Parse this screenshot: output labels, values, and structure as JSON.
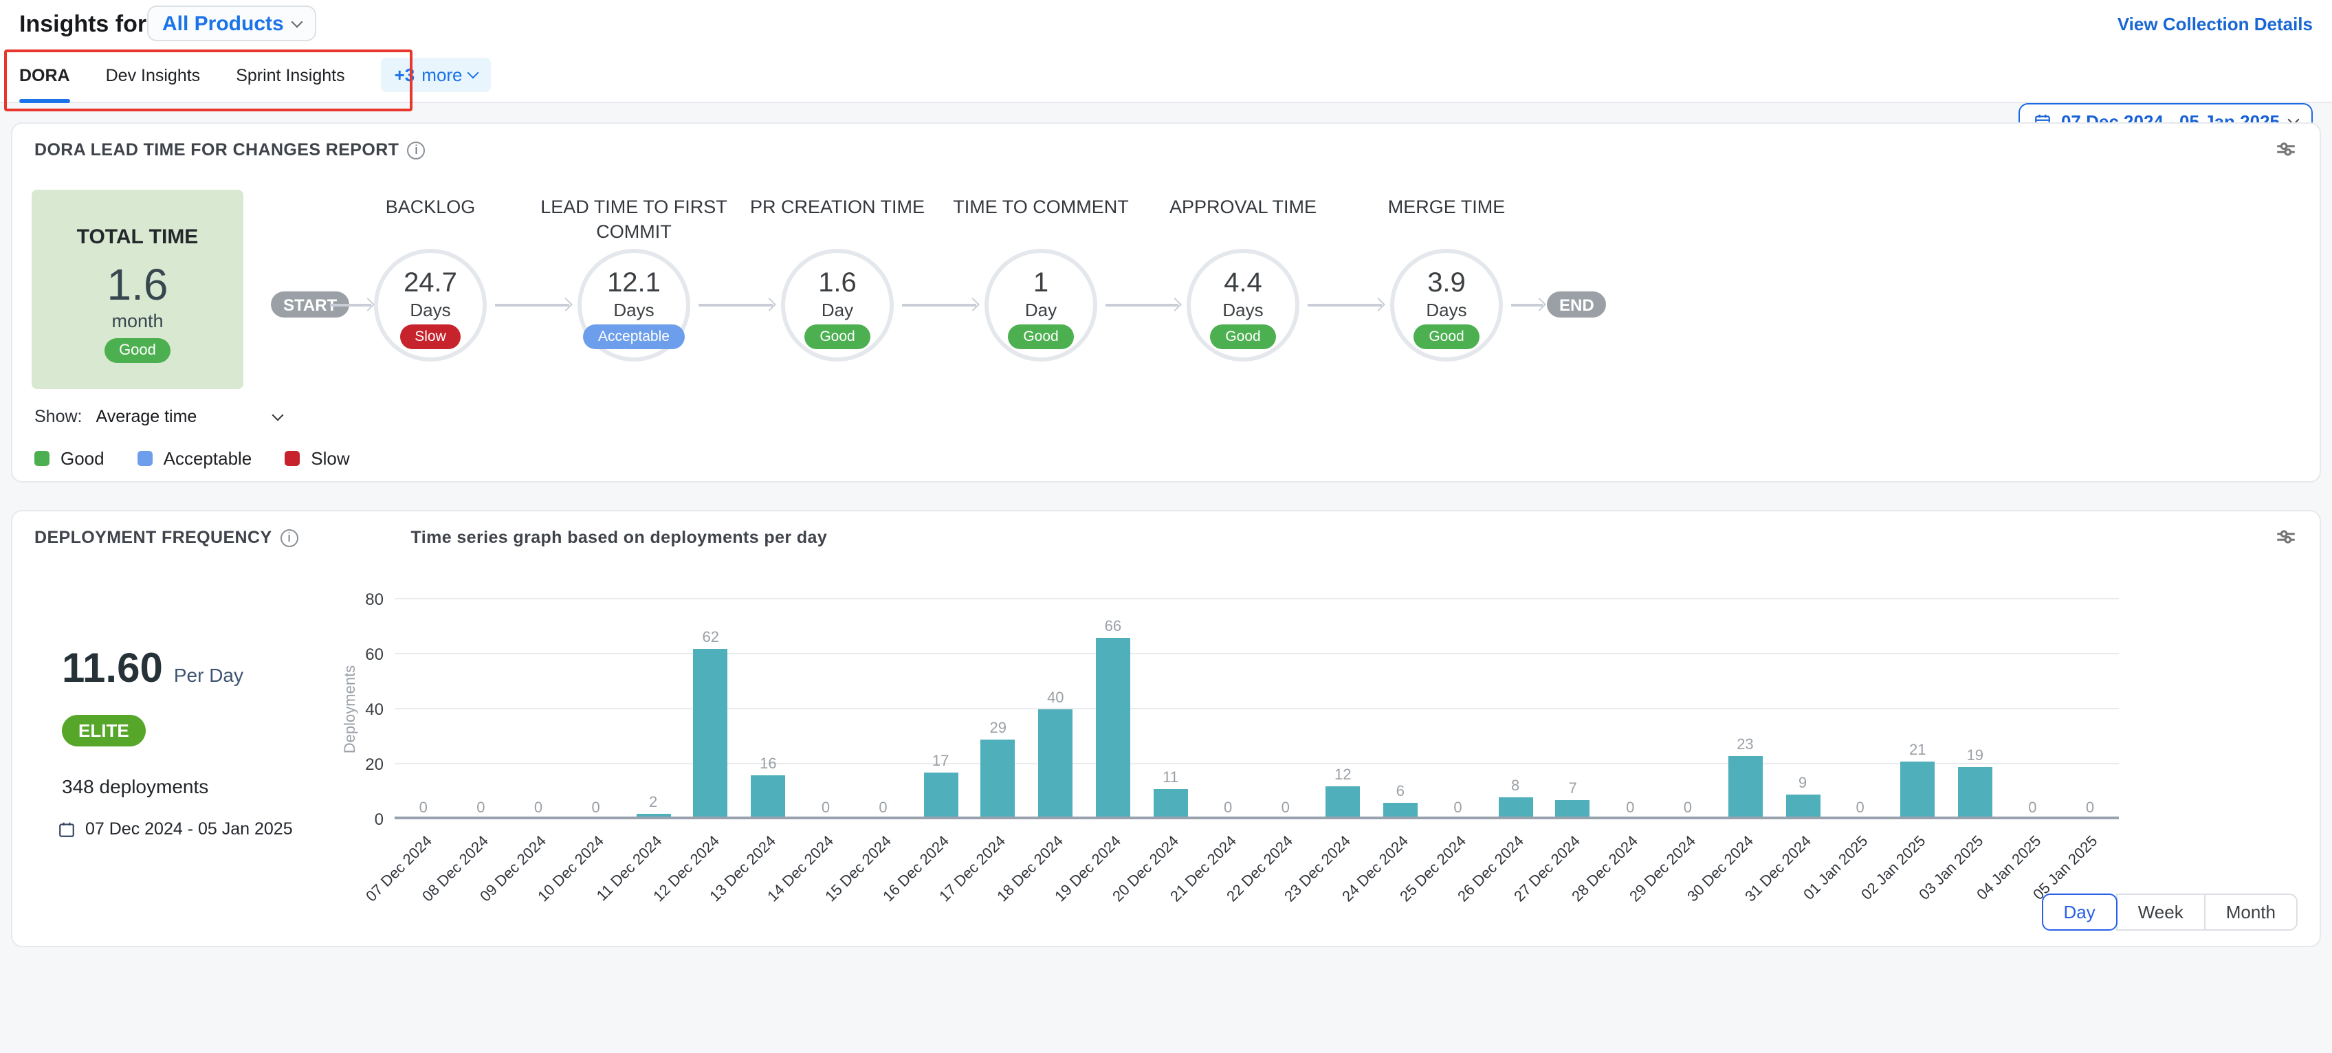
{
  "colors": {
    "good": "#4caf50",
    "acceptable": "#6d9eeb",
    "slow": "#c6232c",
    "bar": "#4fafba",
    "blue": "#1a73e8",
    "elite": "#55a629",
    "annotation_red": "#e8362d"
  },
  "header": {
    "title": "Insights for",
    "product_label": "All Products",
    "view_collection_details": "View Collection Details"
  },
  "tabs": {
    "items": [
      {
        "label": "DORA",
        "active": true
      },
      {
        "label": "Dev Insights",
        "active": false
      },
      {
        "label": "Sprint Insights",
        "active": false
      }
    ],
    "more_count": "+3",
    "more_word": "more",
    "date_range": "07 Dec 2024 - 05 Jan 2025"
  },
  "lead_time_card": {
    "title": "DORA LEAD TIME FOR CHANGES REPORT",
    "total": {
      "label": "TOTAL TIME",
      "value": "1.6",
      "unit": "month",
      "status": "Good"
    },
    "start_label": "START",
    "end_label": "END",
    "stages": [
      {
        "name": "BACKLOG",
        "value": "24.7",
        "unit": "Days",
        "status": "Slow"
      },
      {
        "name": "LEAD TIME TO FIRST COMMIT",
        "value": "12.1",
        "unit": "Days",
        "status": "Acceptable"
      },
      {
        "name": "PR CREATION TIME",
        "value": "1.6",
        "unit": "Day",
        "status": "Good"
      },
      {
        "name": "TIME TO COMMENT",
        "value": "1",
        "unit": "Day",
        "status": "Good"
      },
      {
        "name": "APPROVAL TIME",
        "value": "4.4",
        "unit": "Days",
        "status": "Good"
      },
      {
        "name": "MERGE TIME",
        "value": "3.9",
        "unit": "Days",
        "status": "Good"
      }
    ],
    "show_label": "Show:",
    "show_value": "Average time",
    "legend": [
      {
        "label": "Good",
        "color": "#4caf50"
      },
      {
        "label": "Acceptable",
        "color": "#6d9eeb"
      },
      {
        "label": "Slow",
        "color": "#c6232c"
      }
    ]
  },
  "deployment_card": {
    "title": "DEPLOYMENT FREQUENCY",
    "subtitle": "Time series graph based on deployments per day",
    "rate_value": "11.60",
    "rate_unit": "Per Day",
    "badge": "ELITE",
    "total_deployments": "348 deployments",
    "date_range": "07 Dec 2024 - 05 Jan 2025",
    "granularity": {
      "options": [
        "Day",
        "Week",
        "Month"
      ],
      "active": "Day"
    }
  },
  "chart_data": {
    "type": "bar",
    "title": "Time series graph based on deployments per day",
    "xlabel": "",
    "ylabel": "Deployments",
    "ylim": [
      0,
      80
    ],
    "yticks": [
      0,
      20,
      40,
      60,
      80
    ],
    "grid": true,
    "legend_position": "none",
    "bar_color": "#4fafba",
    "categories": [
      "07 Dec 2024",
      "08 Dec 2024",
      "09 Dec 2024",
      "10 Dec 2024",
      "11 Dec 2024",
      "12 Dec 2024",
      "13 Dec 2024",
      "14 Dec 2024",
      "15 Dec 2024",
      "16 Dec 2024",
      "17 Dec 2024",
      "18 Dec 2024",
      "19 Dec 2024",
      "20 Dec 2024",
      "21 Dec 2024",
      "22 Dec 2024",
      "23 Dec 2024",
      "24 Dec 2024",
      "25 Dec 2024",
      "26 Dec 2024",
      "27 Dec 2024",
      "28 Dec 2024",
      "29 Dec 2024",
      "30 Dec 2024",
      "31 Dec 2024",
      "01 Jan 2025",
      "02 Jan 2025",
      "03 Jan 2025",
      "04 Jan 2025",
      "05 Jan 2025"
    ],
    "values": [
      0,
      0,
      0,
      0,
      2,
      62,
      16,
      0,
      0,
      17,
      29,
      40,
      66,
      11,
      0,
      0,
      12,
      6,
      0,
      8,
      7,
      0,
      0,
      23,
      9,
      0,
      21,
      19,
      0,
      0
    ]
  }
}
